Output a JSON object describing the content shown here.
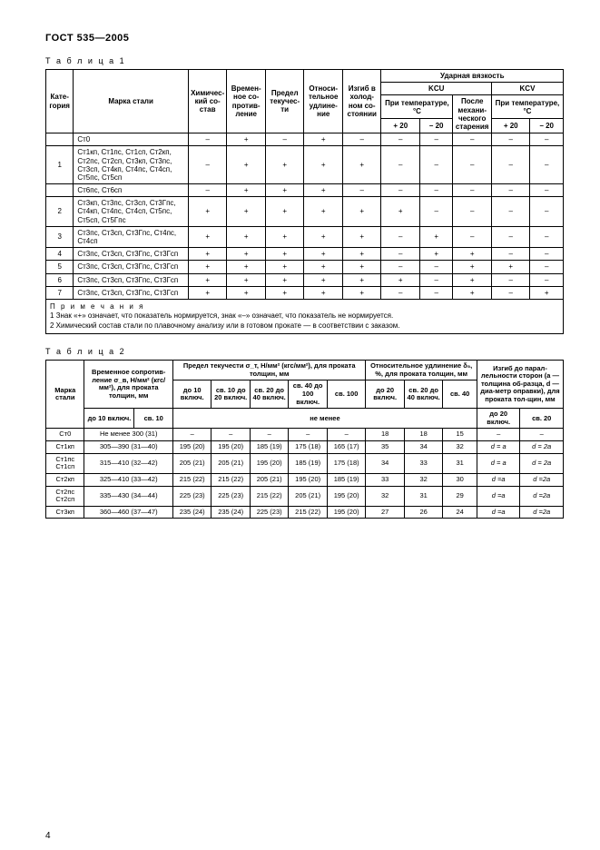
{
  "doc_header": "ГОСТ 535—2005",
  "page_number": "4",
  "table1_label": "Т а б л и ц а 1",
  "table2_label": "Т а б л и ц а 2",
  "t1": {
    "headers": {
      "category": "Кате-гория",
      "steel_grade": "Марка стали",
      "chem_comp": "Химичес-кий со-став",
      "tensile": "Времен-ное со-против-ление",
      "yield": "Предел текучес-ти",
      "elong": "Относи-тельное удлине-ние",
      "bend": "Изгиб в холод-ном со-стоянии",
      "impact": "Ударная вязкость",
      "kcu": "KCU",
      "kcv": "KCV",
      "at_temp": "При температуре, °С",
      "after_aging": "После механи-ческого старения",
      "p20": "+ 20",
      "n20": "– 20"
    },
    "rows": [
      {
        "cat": "",
        "grade": "Ст0",
        "c": "–",
        "t": "+",
        "y": "–",
        "e": "+",
        "b": "–",
        "kcu1": "–",
        "kcu2": "–",
        "kcu3": "–",
        "kcv1": "–",
        "kcv2": "–"
      },
      {
        "cat": "1",
        "grade": "Ст1кп, Ст1пс, Ст1сп, Ст2кп, Ст2пс, Ст2сп, Ст3кп, Ст3пс, Ст3сп, Ст4кп, Ст4пс, Ст4сп, Ст5пс, Ст5сп",
        "c": "–",
        "t": "+",
        "y": "+",
        "e": "+",
        "b": "+",
        "kcu1": "–",
        "kcu2": "–",
        "kcu3": "–",
        "kcv1": "–",
        "kcv2": "–"
      },
      {
        "cat": "",
        "grade": "Ст6пс, Ст6сп",
        "c": "–",
        "t": "+",
        "y": "+",
        "e": "+",
        "b": "–",
        "kcu1": "–",
        "kcu2": "–",
        "kcu3": "–",
        "kcv1": "–",
        "kcv2": "–"
      },
      {
        "cat": "2",
        "grade": "Ст3кп, Ст3пс, Ст3сп, Ст3Гпс, Ст4кп, Ст4пс, Ст4сп, Ст5пс, Ст5сп, Ст5Гпс",
        "c": "+",
        "t": "+",
        "y": "+",
        "e": "+",
        "b": "+",
        "kcu1": "+",
        "kcu2": "–",
        "kcu3": "–",
        "kcv1": "–",
        "kcv2": "–"
      },
      {
        "cat": "3",
        "grade": "Ст3пс, Ст3сп, Ст3Гпс, Ст4пс, Ст4сп",
        "c": "+",
        "t": "+",
        "y": "+",
        "e": "+",
        "b": "+",
        "kcu1": "–",
        "kcu2": "+",
        "kcu3": "–",
        "kcv1": "–",
        "kcv2": "–"
      },
      {
        "cat": "4",
        "grade": "Ст3пс, Ст3сп, Ст3Гпс, Ст3Гсп",
        "c": "+",
        "t": "+",
        "y": "+",
        "e": "+",
        "b": "+",
        "kcu1": "–",
        "kcu2": "+",
        "kcu3": "+",
        "kcv1": "–",
        "kcv2": "–"
      },
      {
        "cat": "5",
        "grade": "Ст3пс, Ст3сп, Ст3Гпс, Ст3Гсп",
        "c": "+",
        "t": "+",
        "y": "+",
        "e": "+",
        "b": "+",
        "kcu1": "–",
        "kcu2": "–",
        "kcu3": "+",
        "kcv1": "+",
        "kcv2": "–"
      },
      {
        "cat": "6",
        "grade": "Ст3пс, Ст3сп, Ст3Гпс, Ст3Гсп",
        "c": "+",
        "t": "+",
        "y": "+",
        "e": "+",
        "b": "+",
        "kcu1": "+",
        "kcu2": "–",
        "kcu3": "+",
        "kcv1": "–",
        "kcv2": "–"
      },
      {
        "cat": "7",
        "grade": "Ст3пс, Ст3сп, Ст3Гпс, Ст3Гсп",
        "c": "+",
        "t": "+",
        "y": "+",
        "e": "+",
        "b": "+",
        "kcu1": "–",
        "kcu2": "–",
        "kcu3": "+",
        "kcv1": "–",
        "kcv2": "+"
      }
    ],
    "notes_title": "П р и м е ч а н и я",
    "note1": "1 Знак «+» означает, что показатель нормируется, знак «–» означает, что показатель не нормируется.",
    "note2": "2 Химический состав стали по плавочному анализу или в готовом прокате — в соответствии с заказом."
  },
  "t2": {
    "headers": {
      "steel_grade": "Марка стали",
      "tensile": "Временное сопротив-ление σ_в, Н/мм² (кгс/мм²), для проката толщин, мм",
      "tensile_sub1": "до 10 включ.",
      "tensile_sub2": "св. 10",
      "yield": "Предел текучести σ_т, Н/мм² (кгс/мм²), для проката толщин, мм",
      "y1": "до 10 включ.",
      "y2": "св. 10 до 20 включ.",
      "y3": "св. 20 до 40 включ.",
      "y4": "св. 40 до 100 включ.",
      "y5": "св. 100",
      "not_less": "не менее",
      "elong": "Относительное удлинение δ₅, %, для проката толщин, мм",
      "e1": "до 20 включ.",
      "e2": "св. 20 до 40 включ.",
      "e3": "св. 40",
      "bend": "Изгиб до парал-лельности сторон (a — толщина об-разца, d — диа-метр оправки), для проката тол-щин, мм",
      "b1": "до 20 включ.",
      "b2": "св. 20"
    },
    "rows": [
      {
        "g": "Ст0",
        "ts": "Не менее 300 (31)",
        "y1": "–",
        "y2": "–",
        "y3": "–",
        "y4": "–",
        "y5": "–",
        "e1": "18",
        "e2": "18",
        "e3": "15",
        "b1": "–",
        "b2": "–"
      },
      {
        "g": "Ст1кп",
        "ts": "305—390 (31—40)",
        "y1": "195 (20)",
        "y2": "195 (20)",
        "y3": "185 (19)",
        "y4": "175 (18)",
        "y5": "165 (17)",
        "e1": "35",
        "e2": "34",
        "e3": "32",
        "b1": "d = a",
        "b2": "d = 2a",
        "span": true
      },
      {
        "g": "Ст1пс Ст1сп",
        "ts": "315—410 (32—42)",
        "y1": "205 (21)",
        "y2": "205 (21)",
        "y3": "195 (20)",
        "y4": "185 (19)",
        "y5": "175 (18)",
        "e1": "34",
        "e2": "33",
        "e3": "31",
        "b1": "d = a",
        "b2": "d = 2a",
        "span": true
      },
      {
        "g": "Ст2кп",
        "ts": "325—410 (33—42)",
        "y1": "215 (22)",
        "y2": "215 (22)",
        "y3": "205 (21)",
        "y4": "195 (20)",
        "y5": "185 (19)",
        "e1": "33",
        "e2": "32",
        "e3": "30",
        "b1": "d =a",
        "b2": "d =2a",
        "span": true
      },
      {
        "g": "Ст2пс Ст2сп",
        "ts": "335—430 (34—44)",
        "y1": "225 (23)",
        "y2": "225 (23)",
        "y3": "215 (22)",
        "y4": "205 (21)",
        "y5": "195 (20)",
        "e1": "32",
        "e2": "31",
        "e3": "29",
        "b1": "d =a",
        "b2": "d =2a",
        "span": true
      },
      {
        "g": "Ст3кп",
        "ts": "360—460 (37—47)",
        "y1": "235 (24)",
        "y2": "235 (24)",
        "y3": "225 (23)",
        "y4": "215 (22)",
        "y5": "195 (20)",
        "e1": "27",
        "e2": "26",
        "e3": "24",
        "b1": "d =a",
        "b2": "d =2a",
        "span": true
      }
    ]
  }
}
